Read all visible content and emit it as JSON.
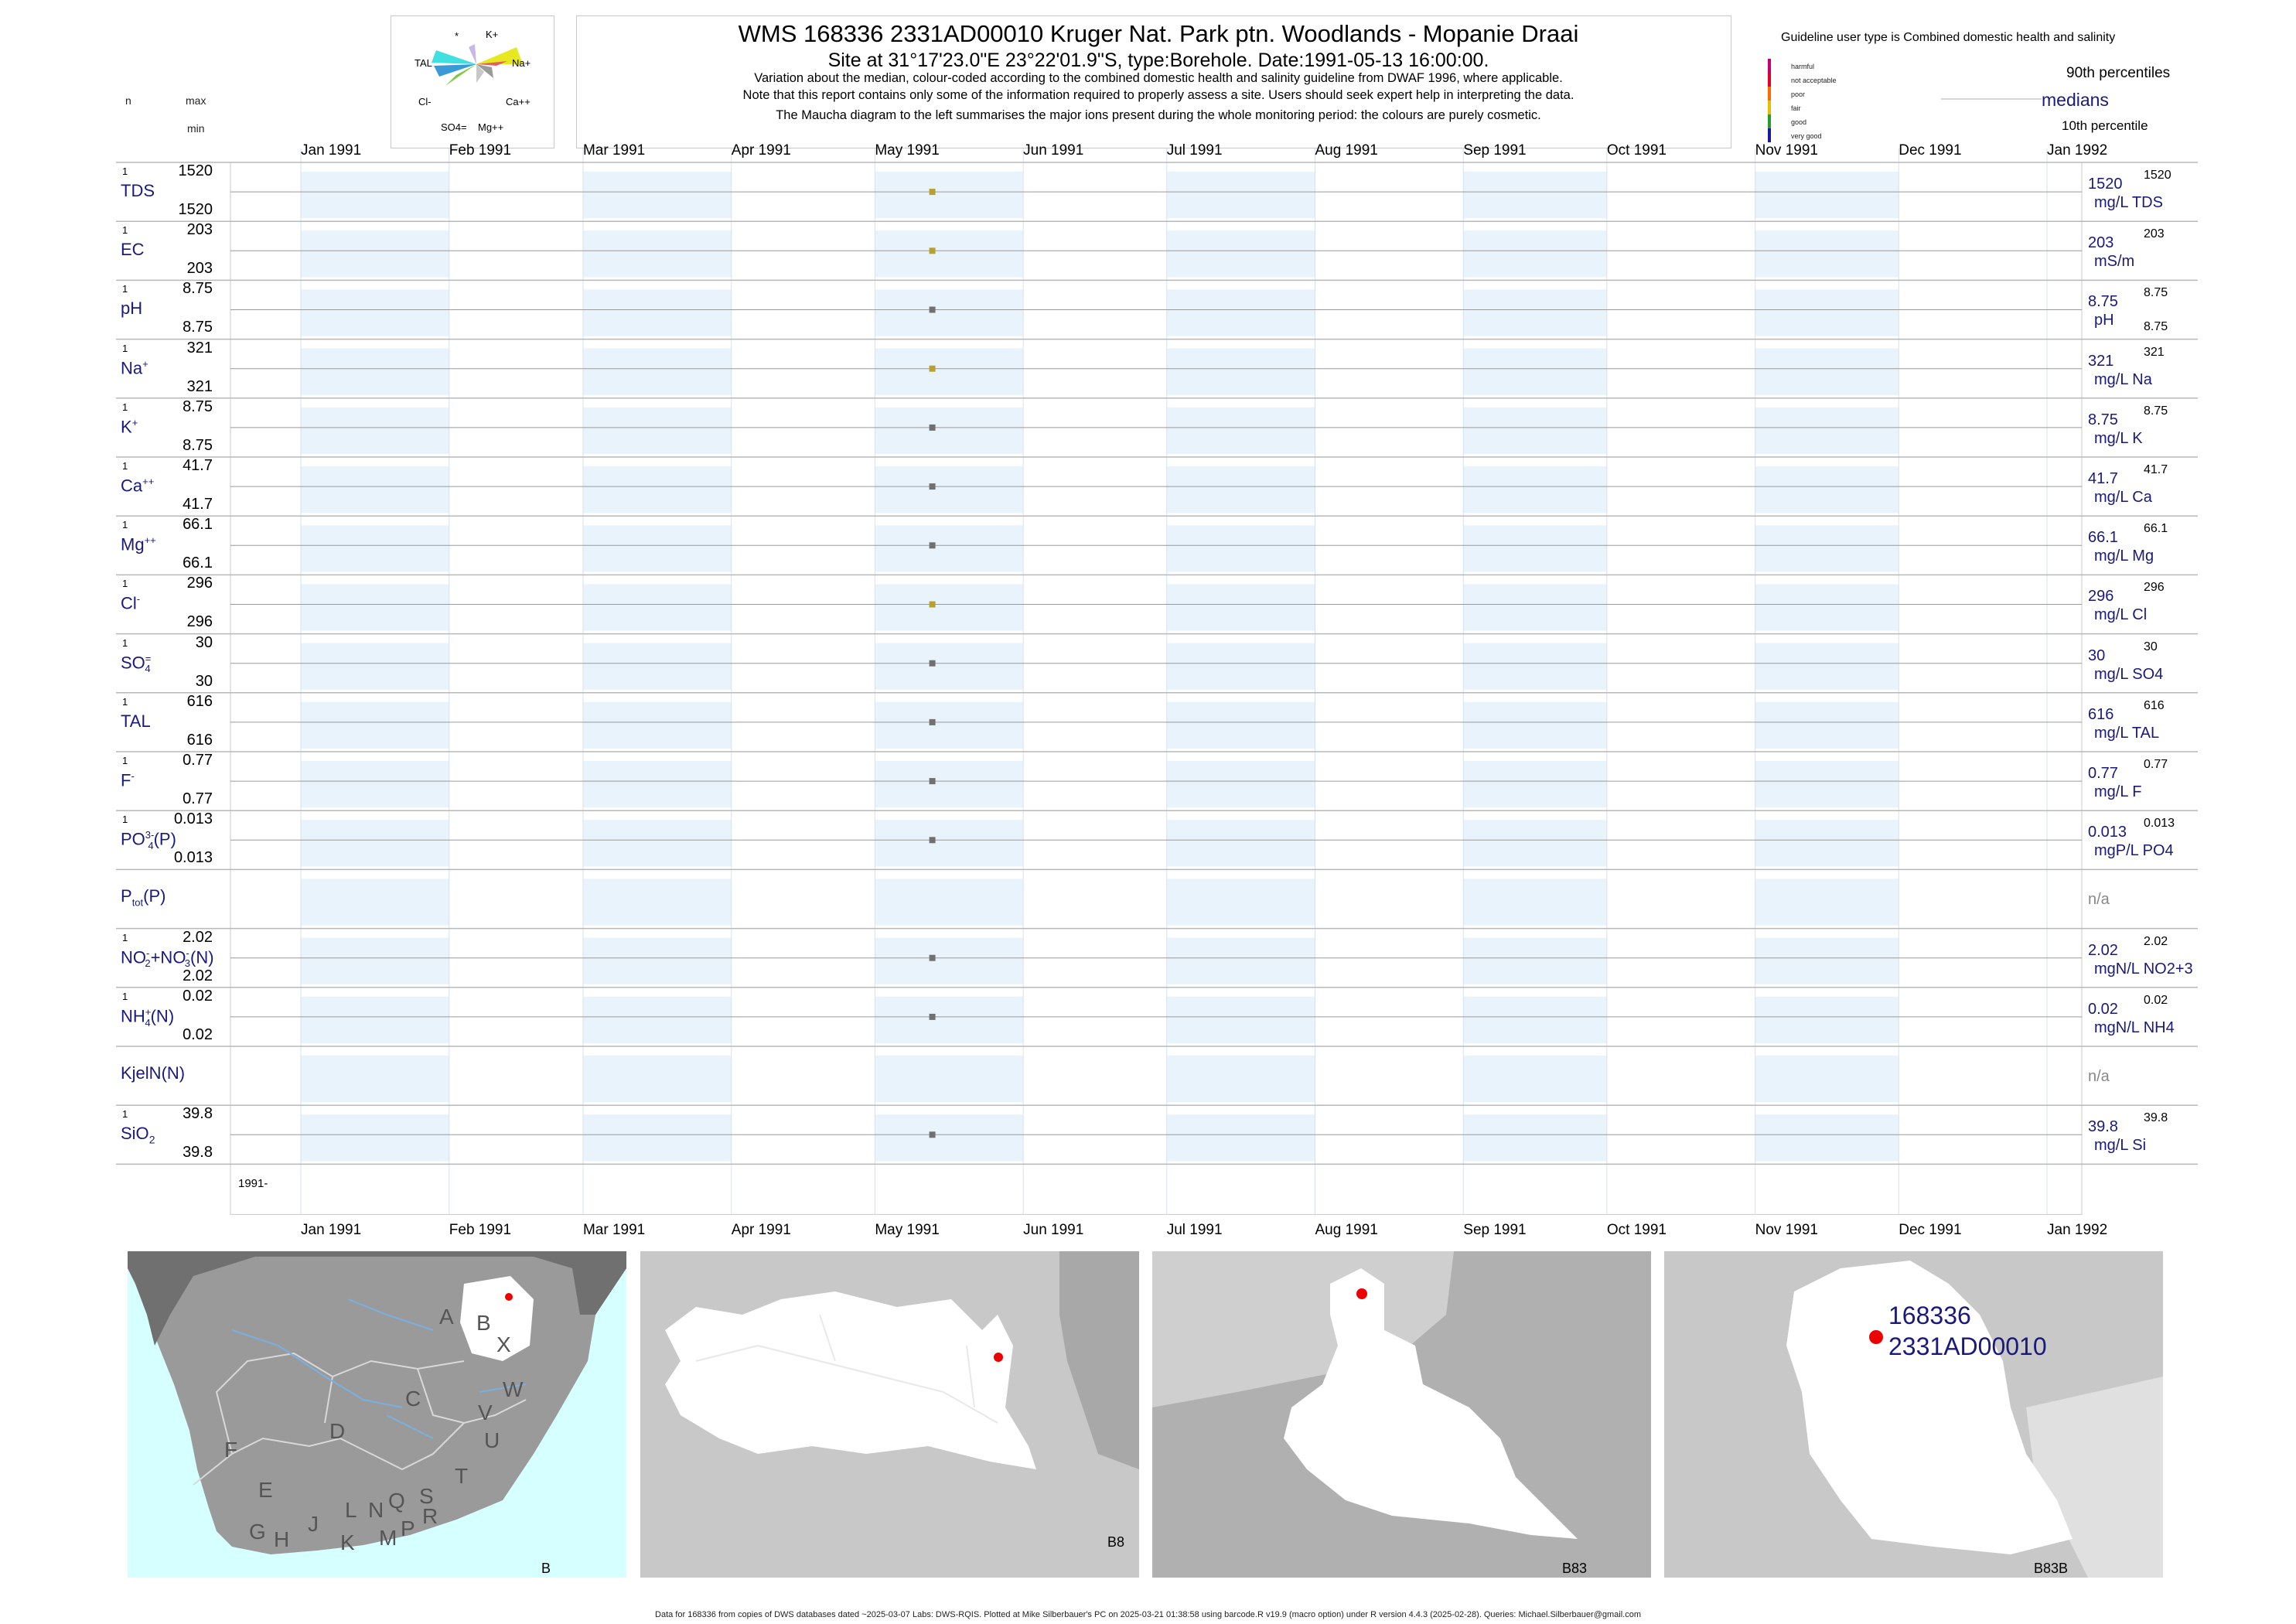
{
  "title": "WMS 168336 2331AD00010 Kruger Nat. Park ptn. Woodlands - Mopanie Draai",
  "subtitle": "Site at 31°17'23.0\"E 23°22'01.9\"S, type:Borehole. Date:1991-05-13 16:00:00.",
  "notes": [
    "Variation about the median,  colour-coded according to the combined domestic health and salinity guideline from DWAF 1996, where applicable.",
    "Note that this report contains only some of the information required to properly assess a site. Users should seek expert help in interpreting the data.",
    "The Maucha diagram to the left summarises the major ions present during the whole monitoring period: the colours are purely cosmetic."
  ],
  "header_left": {
    "n": "n",
    "max": "max",
    "min": "min"
  },
  "maucha": {
    "labels": [
      "*",
      "K+",
      "TAL",
      "Na+",
      "Cl-",
      "Ca++",
      "SO4=",
      "Mg++"
    ]
  },
  "guideline": {
    "title": "Guideline user type is Combined domestic health and salinity",
    "levels": [
      {
        "label": "harmful",
        "color": "#c0007a"
      },
      {
        "label": "not acceptable",
        "color": "#e0002a"
      },
      {
        "label": "poor",
        "color": "#ff6a00"
      },
      {
        "label": "fair",
        "color": "#e0c000"
      },
      {
        "label": "good",
        "color": "#2a9a2a"
      },
      {
        "label": "very good",
        "color": "#1a1aa0"
      }
    ],
    "p90": "90th percentiles",
    "median": "medians",
    "p10": "10th percentile"
  },
  "chart_data": {
    "type": "scatter",
    "x_axis": {
      "ticks": [
        "Jan 1991",
        "Feb 1991",
        "Mar 1991",
        "Apr 1991",
        "May 1991",
        "Jun 1991",
        "Jul 1991",
        "Aug 1991",
        "Sep 1991",
        "Oct 1991",
        "Nov 1991",
        "Dec 1991",
        "Jan 1992"
      ],
      "range": [
        "1991-01-01",
        "1992-01-01"
      ],
      "shaded_months": [
        "Jan 1991",
        "Mar 1991",
        "May 1991",
        "Jul 1991",
        "Sep 1991",
        "Nov 1991",
        "Jan 1992"
      ]
    },
    "bottom_label": "1991-",
    "sample_date": "1991-05-13",
    "series": [
      {
        "name": "TDS",
        "display": "TDS",
        "n": "1",
        "max": "1520",
        "min": "1520",
        "value": 1520,
        "unit": "mg/L TDS",
        "right_max": "1520",
        "right_min": "",
        "color": "#b8a030"
      },
      {
        "name": "EC",
        "display": "EC",
        "n": "1",
        "max": "203",
        "min": "203",
        "value": 203,
        "unit": "mS/m",
        "right_max": "203",
        "right_min": "",
        "color": "#b8a030"
      },
      {
        "name": "pH",
        "display": "pH",
        "n": "1",
        "max": "8.75",
        "min": "8.75",
        "value": 8.75,
        "unit": "pH",
        "right_max": "8.75",
        "right_min": "8.75",
        "color": "#707070"
      },
      {
        "name": "Na",
        "display": "Na+",
        "n": "1",
        "max": "321",
        "min": "321",
        "value": 321,
        "unit": "mg/L Na",
        "right_max": "321",
        "right_min": "",
        "color": "#b8a030"
      },
      {
        "name": "K",
        "display": "K+",
        "n": "1",
        "max": "8.75",
        "min": "8.75",
        "value": 8.75,
        "unit": "mg/L K",
        "right_max": "8.75",
        "right_min": "",
        "color": "#707070"
      },
      {
        "name": "Ca",
        "display": "Ca++",
        "n": "1",
        "max": "41.7",
        "min": "41.7",
        "value": 41.7,
        "unit": "mg/L Ca",
        "right_max": "41.7",
        "right_min": "",
        "color": "#707070"
      },
      {
        "name": "Mg",
        "display": "Mg++",
        "n": "1",
        "max": "66.1",
        "min": "66.1",
        "value": 66.1,
        "unit": "mg/L Mg",
        "right_max": "66.1",
        "right_min": "",
        "color": "#707070"
      },
      {
        "name": "Cl",
        "display": "Cl-",
        "n": "1",
        "max": "296",
        "min": "296",
        "value": 296,
        "unit": "mg/L Cl",
        "right_max": "296",
        "right_min": "",
        "color": "#b8a030"
      },
      {
        "name": "SO4",
        "display": "SO4=",
        "n": "1",
        "max": "30",
        "min": "30",
        "value": 30,
        "unit": "mg/L SO4",
        "right_max": "30",
        "right_min": "",
        "color": "#707070"
      },
      {
        "name": "TAL",
        "display": "TAL",
        "n": "1",
        "max": "616",
        "min": "616",
        "value": 616,
        "unit": "mg/L TAL",
        "right_max": "616",
        "right_min": "",
        "color": "#707070"
      },
      {
        "name": "F",
        "display": "F-",
        "n": "1",
        "max": "0.77",
        "min": "0.77",
        "value": 0.77,
        "unit": "mg/L F",
        "right_max": "0.77",
        "right_min": "",
        "color": "#707070"
      },
      {
        "name": "PO4",
        "display": "PO43-(P)",
        "n": "1",
        "max": "0.013",
        "min": "0.013",
        "value": 0.013,
        "unit": "mgP/L PO4",
        "right_max": "0.013",
        "right_min": "",
        "color": "#707070"
      },
      {
        "name": "Ptot",
        "display": "Ptot(P)",
        "n": "",
        "max": "",
        "min": "",
        "value": null,
        "unit": "n/a",
        "right_max": "",
        "right_min": "",
        "color": "#707070"
      },
      {
        "name": "NO2+NO3",
        "display": "NO2-+NO3-(N)",
        "n": "1",
        "max": "2.02",
        "min": "2.02",
        "value": 2.02,
        "unit": "mgN/L NO2+3",
        "right_max": "2.02",
        "right_min": "",
        "color": "#707070"
      },
      {
        "name": "NH4",
        "display": "NH4+(N)",
        "n": "1",
        "max": "0.02",
        "min": "0.02",
        "value": 0.02,
        "unit": "mgN/L NH4",
        "right_max": "0.02",
        "right_min": "",
        "color": "#707070"
      },
      {
        "name": "KjelN",
        "display": "KjelN(N)",
        "n": "",
        "max": "",
        "min": "",
        "value": null,
        "unit": "n/a",
        "right_max": "",
        "right_min": "",
        "color": "#707070"
      },
      {
        "name": "SiO2",
        "display": "SiO2",
        "n": "1",
        "max": "39.8",
        "min": "39.8",
        "value": 39.8,
        "unit": "mg/L Si",
        "right_max": "39.8",
        "right_min": "",
        "color": "#707070"
      }
    ]
  },
  "maps": [
    {
      "name": "B",
      "labels": [
        "A",
        "B",
        "X",
        "W",
        "C",
        "D",
        "V",
        "U",
        "F",
        "T",
        "E",
        "L",
        "N",
        "Q",
        "S",
        "R",
        "G",
        "H",
        "J",
        "K",
        "M",
        "P"
      ]
    },
    {
      "name": "B8"
    },
    {
      "name": "B83"
    },
    {
      "name": "B83B",
      "site_label_1": "168336",
      "site_label_2": "2331AD00010"
    }
  ],
  "colors": {
    "navy": "#1a1a7a",
    "shade": "#e8f3fc",
    "ocean": "#d6ffff",
    "grid": "#c8c8c8",
    "site": "#ee0000"
  },
  "footer": "Data for 168336 from copies of DWS databases dated ~2025-03-07 Labs: DWS-RQIS. Plotted at Mike Silberbauer's PC on 2025-03-21 01:38:58 using barcode.R v19.9 (macro option) under R version 4.4.3 (2025-02-28). Queries: Michael.Silberbauer@gmail.com"
}
